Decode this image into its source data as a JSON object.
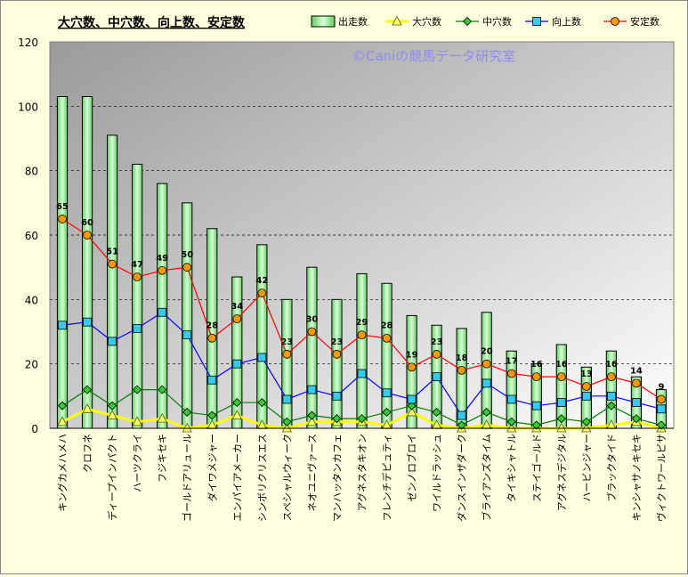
{
  "chart_data": {
    "type": "bar",
    "title": "大穴数、中穴数、向上数、安定数",
    "watermark": "©Caniの競馬データ研究室",
    "xlabel": "",
    "ylabel": "",
    "ylim": [
      0,
      120
    ],
    "yticks": [
      0,
      20,
      40,
      60,
      80,
      100,
      120
    ],
    "grid": true,
    "legend_position": "top-right",
    "categories": [
      "キングカメハメハ",
      "クロフネ",
      "ディープインパクト",
      "ハーツクライ",
      "フジキセキ",
      "ゴールドアリュール",
      "ダイワメジャー",
      "エンパイアメーカー",
      "シンボリクリスエス",
      "スペシャルウィーク",
      "ネオユニヴァース",
      "マンハッタンカフェ",
      "アグネスタキオン",
      "フレンチデピュティ",
      "ゼンノロブロイ",
      "ワイルドラッシュ",
      "ダンスインザダーク",
      "ブライアンズタイム",
      "タイキシャトル",
      "ステイゴールド",
      "アグネスデジタル",
      "ハービンジャー",
      "ブラックタイド",
      "キンシャサノキセキ",
      "ヴィクトワールピサ"
    ],
    "series": [
      {
        "name": "出走数",
        "kind": "bar",
        "color": "#90ee90",
        "values": [
          103,
          103,
          91,
          82,
          76,
          70,
          62,
          47,
          57,
          40,
          50,
          40,
          48,
          45,
          35,
          32,
          31,
          36,
          24,
          20,
          26,
          19,
          24,
          16,
          12
        ]
      },
      {
        "name": "大穴数",
        "kind": "line",
        "color": "#ffff00",
        "marker": "triangle",
        "values": [
          2,
          6,
          4,
          2,
          3,
          0,
          1,
          4,
          1,
          0,
          2,
          2,
          2,
          1,
          5,
          1,
          0,
          1,
          0,
          0,
          0,
          0,
          1,
          2,
          0
        ]
      },
      {
        "name": "中穴数",
        "kind": "line",
        "color": "#008000",
        "marker": "diamond",
        "values": [
          7,
          12,
          7,
          12,
          12,
          5,
          4,
          8,
          8,
          2,
          4,
          3,
          3,
          5,
          7,
          5,
          1,
          5,
          2,
          1,
          3,
          2,
          7,
          3,
          1
        ]
      },
      {
        "name": "向上数",
        "kind": "line",
        "color": "#0000ff",
        "marker": "square",
        "values": [
          32,
          33,
          27,
          31,
          36,
          29,
          15,
          20,
          22,
          9,
          12,
          10,
          17,
          11,
          9,
          16,
          4,
          14,
          9,
          7,
          8,
          10,
          10,
          8,
          6
        ]
      },
      {
        "name": "安定数",
        "kind": "line",
        "color": "#ff0000",
        "marker": "circle",
        "values": [
          65,
          60,
          51,
          47,
          49,
          50,
          28,
          34,
          42,
          23,
          30,
          23,
          29,
          28,
          19,
          23,
          18,
          20,
          17,
          16,
          16,
          13,
          16,
          14,
          9
        ]
      }
    ]
  }
}
